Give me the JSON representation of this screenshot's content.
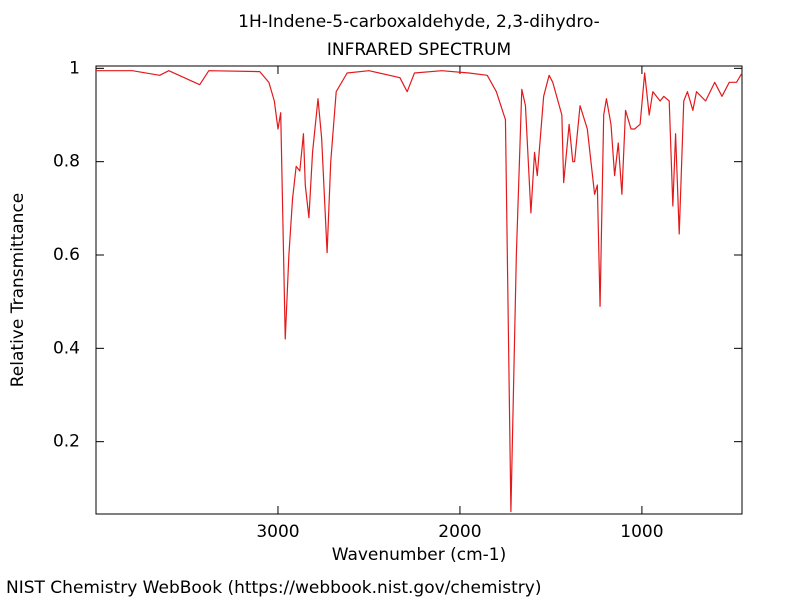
{
  "chart_data": {
    "type": "line",
    "title": "1H-Indene-5-carboxaldehyde, 2,3-dihydro-",
    "subtitle": "INFRARED SPECTRUM",
    "xlabel": "Wavenumber (cm-1)",
    "ylabel": "Relative Transmittance",
    "footer": "NIST Chemistry WebBook (https://webbook.nist.gov/chemistry)",
    "xlim": [
      4000,
      450
    ],
    "ylim": [
      0.045,
      1.005
    ],
    "xticks": [
      3000,
      2000,
      1000
    ],
    "yticks": [
      0.2,
      0.4,
      0.6,
      0.8,
      1
    ],
    "series": [
      {
        "color": "#e31a1c",
        "x": [
          4000,
          3800,
          3650,
          3600,
          3430,
          3380,
          3100,
          3050,
          3020,
          3000,
          2985,
          2960,
          2940,
          2920,
          2900,
          2880,
          2860,
          2850,
          2830,
          2810,
          2780,
          2760,
          2730,
          2710,
          2680,
          2620,
          2500,
          2330,
          2290,
          2250,
          2100,
          1950,
          1850,
          1800,
          1750,
          1720,
          1690,
          1660,
          1640,
          1610,
          1590,
          1575,
          1540,
          1510,
          1490,
          1440,
          1430,
          1400,
          1380,
          1370,
          1340,
          1300,
          1260,
          1245,
          1230,
          1210,
          1195,
          1170,
          1150,
          1130,
          1110,
          1090,
          1060,
          1040,
          1010,
          985,
          960,
          940,
          900,
          880,
          850,
          830,
          815,
          795,
          770,
          750,
          720,
          700,
          650,
          600,
          560,
          520,
          480,
          450
        ],
        "values": [
          0.995,
          0.995,
          0.985,
          0.995,
          0.965,
          0.995,
          0.993,
          0.97,
          0.93,
          0.87,
          0.905,
          0.42,
          0.6,
          0.72,
          0.79,
          0.78,
          0.86,
          0.75,
          0.68,
          0.82,
          0.935,
          0.85,
          0.605,
          0.8,
          0.95,
          0.99,
          0.995,
          0.98,
          0.95,
          0.99,
          0.995,
          0.99,
          0.985,
          0.95,
          0.89,
          0.05,
          0.6,
          0.955,
          0.92,
          0.69,
          0.82,
          0.77,
          0.94,
          0.985,
          0.97,
          0.9,
          0.755,
          0.88,
          0.8,
          0.8,
          0.92,
          0.87,
          0.73,
          0.75,
          0.49,
          0.9,
          0.935,
          0.88,
          0.77,
          0.84,
          0.73,
          0.91,
          0.87,
          0.87,
          0.88,
          0.99,
          0.9,
          0.95,
          0.93,
          0.94,
          0.93,
          0.705,
          0.86,
          0.645,
          0.93,
          0.95,
          0.91,
          0.95,
          0.93,
          0.97,
          0.94,
          0.97,
          0.97,
          0.99
        ]
      }
    ]
  }
}
